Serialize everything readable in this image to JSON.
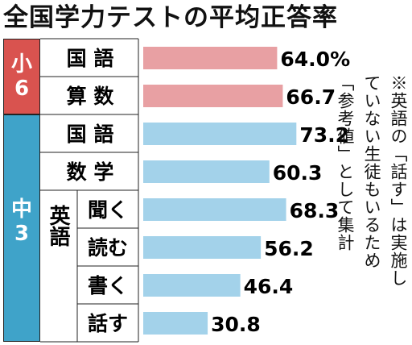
{
  "title": "全国学力テストの平均正答率",
  "groups": [
    {
      "label_line1": "小",
      "label_line2": "6",
      "color": "#d9534f"
    },
    {
      "label_line1": "中",
      "label_line2": "3",
      "color": "#3fa3c9"
    }
  ],
  "subgroup_label": "英語",
  "colors": {
    "elem_bar": "#e8a0a3",
    "junior_bar": "#a3d2ea",
    "grid": "#222222"
  },
  "note_lines": [
    "※英語の「話す」は実施し",
    "ていない生徒もいるため",
    "「参考値」として集計"
  ],
  "chart_data": {
    "type": "bar",
    "orientation": "horizontal",
    "title": "全国学力テストの平均正答率",
    "categories": [
      "国 語",
      "算 数",
      "国 語",
      "数 学",
      "聞く",
      "読む",
      "書く",
      "話す"
    ],
    "group_of_category": [
      "小6",
      "小6",
      "中3",
      "中3",
      "中3",
      "中3",
      "中3",
      "中3"
    ],
    "values": [
      64.0,
      66.7,
      73.2,
      60.3,
      68.3,
      56.2,
      46.4,
      30.8
    ],
    "value_labels": [
      "64.0%",
      "66.7",
      "73.2",
      "60.3",
      "68.3",
      "56.2",
      "46.4",
      "30.8"
    ],
    "xlim": [
      0,
      100
    ],
    "grid": false,
    "legend": "none"
  }
}
